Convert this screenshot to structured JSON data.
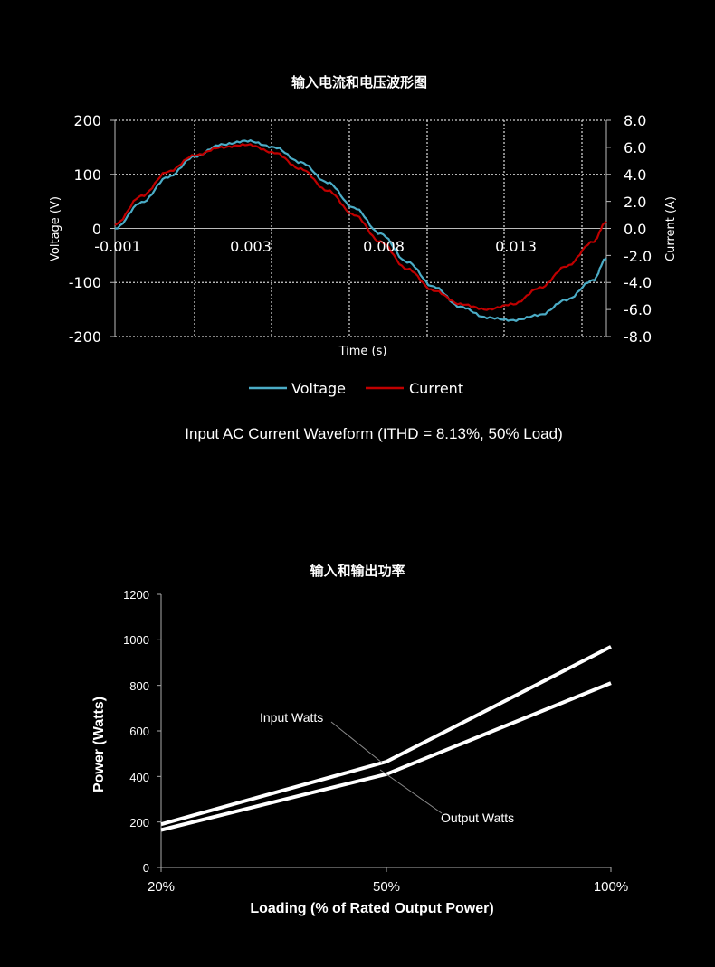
{
  "chart_data": [
    {
      "type": "line",
      "title": "输入电流和电压波形图",
      "xlabel": "Time (s)",
      "ylabel": "Voltage (V)",
      "y2label": "Current (A)",
      "x_tick_labels": [
        "-0.001",
        "0.003",
        "0.008",
        "0.013"
      ],
      "y_ticks": [
        "200",
        "100",
        "0",
        "-100",
        "-200"
      ],
      "y2_ticks": [
        "8.0",
        "6.0",
        "4.0",
        "2.0",
        "0.0",
        "-2.0",
        "-4.0",
        "-6.0",
        "-8.0"
      ],
      "ylim": [
        -200,
        200
      ],
      "y2lim": [
        -8,
        8
      ],
      "xlim": [
        -0.001,
        0.0175
      ],
      "grid": "dotted",
      "legend_position": "bottom",
      "series": [
        {
          "name": "Voltage",
          "axis": "left",
          "color": "#4bacc6",
          "x": [
            -0.001,
            0.0,
            0.001,
            0.002,
            0.003,
            0.004,
            0.005,
            0.006,
            0.007,
            0.008,
            0.009,
            0.01,
            0.011,
            0.012,
            0.013,
            0.014,
            0.015,
            0.016,
            0.017,
            0.0175
          ],
          "y": [
            0,
            48,
            95,
            133,
            155,
            162,
            150,
            122,
            85,
            38,
            -10,
            -62,
            -108,
            -145,
            -165,
            -170,
            -160,
            -132,
            -96,
            -55
          ]
        },
        {
          "name": "Current",
          "axis": "right",
          "color": "#c00000",
          "x": [
            -0.001,
            0.0,
            0.001,
            0.002,
            0.003,
            0.004,
            0.005,
            0.006,
            0.007,
            0.008,
            0.009,
            0.01,
            0.011,
            0.012,
            0.013,
            0.014,
            0.015,
            0.016,
            0.017,
            0.0175
          ],
          "y": [
            0.3,
            2.4,
            4.2,
            5.4,
            6.0,
            6.2,
            5.6,
            4.4,
            2.8,
            1.0,
            -1.0,
            -3.0,
            -4.6,
            -5.6,
            -6.0,
            -5.6,
            -4.4,
            -2.8,
            -1.0,
            0.5
          ]
        }
      ]
    },
    {
      "type": "line",
      "title": "输入和输出功率",
      "xlabel": "Loading (% of Rated Output Power)",
      "ylabel": "Power (Watts)",
      "categories": [
        "20%",
        "50%",
        "100%"
      ],
      "y_ticks": [
        "1200",
        "1000",
        "800",
        "600",
        "400",
        "200",
        "0"
      ],
      "ylim": [
        0,
        1200
      ],
      "grid": "off",
      "series": [
        {
          "name": "Input Watts",
          "color": "#ffffff",
          "values": [
            190,
            465,
            970
          ]
        },
        {
          "name": "Output Watts",
          "color": "#ffffff",
          "values": [
            165,
            410,
            810
          ]
        }
      ],
      "annotations": [
        "Input Watts",
        "Output Watts"
      ]
    }
  ],
  "caption": "Input AC Current Waveform (ITHD = 8.13%, 50% Load)"
}
